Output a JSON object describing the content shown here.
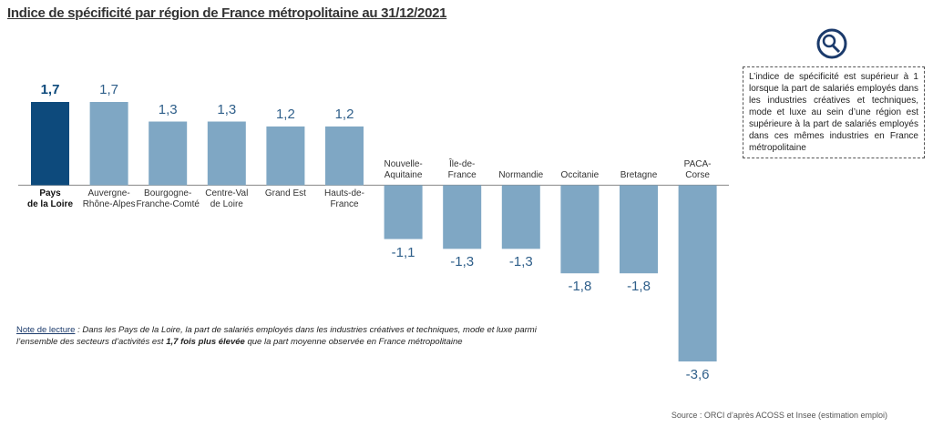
{
  "chart_data": {
    "type": "bar",
    "title": "Indice de spécificité par région de France métropolitaine au 31/12/2021",
    "categories": [
      "Pays\nde la Loire",
      "Auvergne-\nRhône-Alpes",
      "Bourgogne-\nFranche-Comté",
      "Centre-Val\nde Loire",
      "Grand Est",
      "Hauts-de-\nFrance",
      "Nouvelle-\nAquitaine",
      "Île-de-\nFrance",
      "Normandie",
      "Occitanie",
      "Bretagne",
      "PACA-\nCorse"
    ],
    "values": [
      1.7,
      1.7,
      1.3,
      1.3,
      1.2,
      1.2,
      -1.1,
      -1.3,
      -1.3,
      -1.8,
      -1.8,
      -3.6
    ],
    "value_labels": [
      "1,7",
      "1,7",
      "1,3",
      "1,3",
      "1,2",
      "1,2",
      "-1,1",
      "-1,3",
      "-1,3",
      "-1,8",
      "-1,8",
      "-3,6"
    ],
    "colors": [
      "#0d4a7c",
      "#7fa7c4",
      "#7fa7c4",
      "#7fa7c4",
      "#7fa7c4",
      "#7fa7c4",
      "#7fa7c4",
      "#7fa7c4",
      "#7fa7c4",
      "#7fa7c4",
      "#7fa7c4",
      "#7fa7c4"
    ],
    "ylim": [
      -3.6,
      1.7
    ],
    "info_box": "L’indice de spécificité est supérieur à 1 lorsque la part de salariés employés dans les industries créatives et techniques, mode et luxe au sein d’une région est supérieure à la part de salariés employés dans ces mêmes industries en France métropolitaine",
    "note": {
      "label": "Note de lecture",
      "text_before": " : Dans les Pays de la Loire, la part de salariés employés dans les industries créatives et techniques, mode et luxe parmi l’ensemble des secteurs d’activités est ",
      "emphasis": "1,7 fois plus élevée",
      "text_after": " que la part moyenne observée en France métropolitaine"
    },
    "source": "Source : ORCI d’après ACOSS et Insee (estimation emploi)"
  }
}
